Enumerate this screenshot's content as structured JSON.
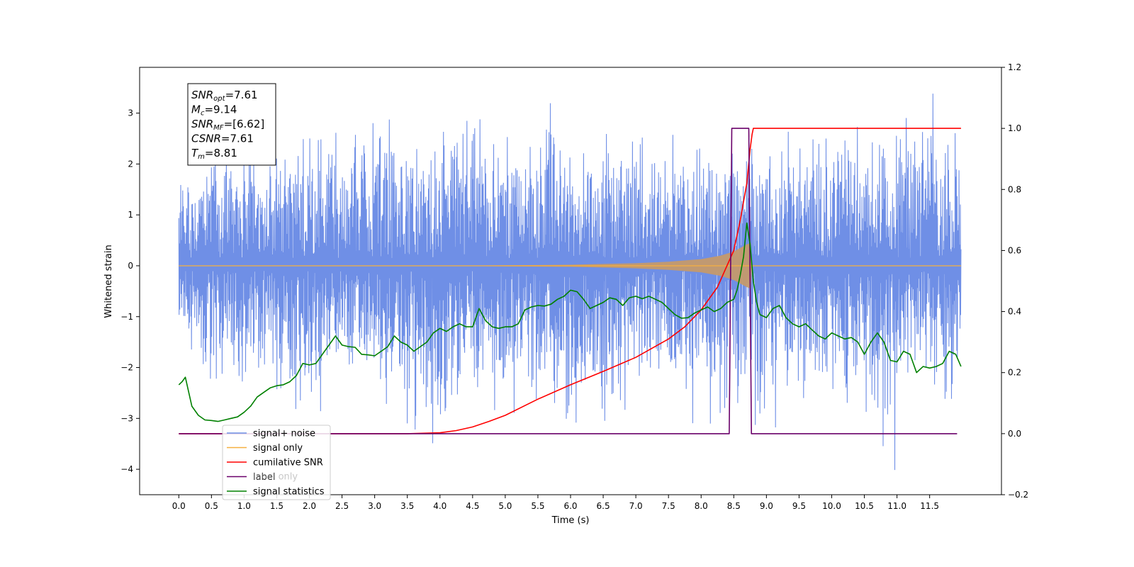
{
  "chart_data": {
    "type": "line",
    "xlabel": "Time (s)",
    "ylabel_left": "Whitened strain",
    "ylabel_right": "",
    "xlim": [
      -0.6,
      12.6
    ],
    "ylim_left": [
      -4.5,
      3.9
    ],
    "ylim_right": [
      -0.2,
      1.2
    ],
    "x_ticks": [
      0.0,
      0.5,
      1.0,
      1.5,
      2.0,
      2.5,
      3.0,
      3.5,
      4.0,
      4.5,
      5.0,
      5.5,
      6.0,
      6.5,
      7.0,
      7.5,
      8.0,
      8.5,
      9.0,
      9.5,
      10.0,
      10.5,
      11.0,
      11.5
    ],
    "x_tick_labels": [
      "0.0",
      "0.5",
      "1.0",
      "1.5",
      "2.0",
      "2.5",
      "3.0",
      "3.5",
      "4.0",
      "4.5",
      "5.0",
      "5.5",
      "6.0",
      "6.5",
      "7.0",
      "7.5",
      "8.0",
      "8.5",
      "9.0",
      "9.5",
      "10.0",
      "10.5",
      "11.0",
      "11.5"
    ],
    "y_ticks_left": [
      -4,
      -3,
      -2,
      -1,
      0,
      1,
      2,
      3
    ],
    "y_tick_labels_left": [
      "−4",
      "−3",
      "−2",
      "−1",
      "0",
      "1",
      "2",
      "3"
    ],
    "y_ticks_right": [
      -0.2,
      0.0,
      0.2,
      0.4,
      0.6,
      0.8,
      1.0,
      1.2
    ],
    "y_tick_labels_right": [
      "−0.2",
      "0.0",
      "0.2",
      "0.4",
      "0.6",
      "0.8",
      "1.0",
      "1.2"
    ],
    "grid": false,
    "legend_position": "lower-left",
    "colors": {
      "signal_noise": "#6f8fe6",
      "signal_only": "#f5b041",
      "signal_only_fill": "#c49a6c",
      "cumulative_snr": "#ff0000",
      "label": "#6a006a",
      "signal_statistics": "#008000"
    },
    "series": [
      {
        "name": "signal+ noise",
        "axis": "left",
        "x_range": [
          0.0,
          11.98
        ],
        "envelope": {
          "x": [
            0.0,
            0.5,
            1.0,
            1.5,
            2.0,
            2.5,
            3.0,
            3.5,
            4.0,
            4.5,
            5.0,
            5.5,
            6.0,
            6.5,
            7.0,
            7.5,
            8.0,
            8.5,
            9.0,
            9.5,
            10.0,
            10.5,
            11.0,
            11.5,
            11.98
          ],
          "upper": [
            1.9,
            2.3,
            2.6,
            2.2,
            3.1,
            2.5,
            3.1,
            2.6,
            2.6,
            2.9,
            2.8,
            3.5,
            2.7,
            2.6,
            2.5,
            2.6,
            2.4,
            2.6,
            2.5,
            2.7,
            3.2,
            2.6,
            2.9,
            3.5,
            2.4
          ],
          "lower": [
            -1.1,
            -2.5,
            -2.4,
            -3.0,
            -3.2,
            -2.2,
            -2.5,
            -3.1,
            -3.6,
            -2.5,
            -3.0,
            -2.6,
            -3.4,
            -3.5,
            -2.5,
            -2.5,
            -3.3,
            -2.6,
            -3.4,
            -2.6,
            -2.6,
            -2.8,
            -4.1,
            -2.6,
            -2.9
          ]
        }
      },
      {
        "name": "signal only",
        "axis": "left",
        "x": [
          0.0,
          4.0,
          5.0,
          6.0,
          7.0,
          7.5,
          8.0,
          8.3,
          8.5,
          8.7,
          8.76,
          8.78,
          11.98
        ],
        "amplitude": [
          0.0,
          0.0,
          0.01,
          0.02,
          0.05,
          0.08,
          0.13,
          0.2,
          0.28,
          0.42,
          0.45,
          0.0,
          0.0
        ]
      },
      {
        "name": "cumilative SNR",
        "axis": "right",
        "x": [
          0.0,
          3.5,
          4.0,
          4.25,
          4.5,
          4.75,
          5.0,
          5.5,
          6.0,
          6.5,
          7.0,
          7.5,
          7.75,
          8.0,
          8.25,
          8.5,
          8.6,
          8.7,
          8.75,
          8.78,
          8.8,
          11.98
        ],
        "y": [
          0.0,
          0.0,
          0.003,
          0.01,
          0.022,
          0.04,
          0.06,
          0.113,
          0.16,
          0.204,
          0.25,
          0.31,
          0.35,
          0.405,
          0.48,
          0.6,
          0.7,
          0.82,
          0.93,
          0.98,
          1.0,
          1.0
        ]
      },
      {
        "name": "label",
        "axis": "right",
        "x": [
          0.0,
          8.43,
          8.47,
          8.73,
          8.77,
          11.92
        ],
        "y": [
          0.0,
          0.0,
          1.0,
          1.0,
          0.0,
          0.0
        ]
      },
      {
        "name": "signal statistics",
        "axis": "right",
        "x": [
          0.0,
          0.05,
          0.1,
          0.2,
          0.3,
          0.4,
          0.5,
          0.6,
          0.7,
          0.8,
          0.9,
          1.0,
          1.1,
          1.2,
          1.3,
          1.4,
          1.5,
          1.6,
          1.7,
          1.8,
          1.9,
          2.0,
          2.1,
          2.2,
          2.3,
          2.4,
          2.5,
          2.6,
          2.7,
          2.8,
          2.9,
          3.0,
          3.1,
          3.2,
          3.3,
          3.4,
          3.5,
          3.6,
          3.7,
          3.8,
          3.9,
          4.0,
          4.1,
          4.2,
          4.3,
          4.4,
          4.5,
          4.6,
          4.7,
          4.8,
          4.9,
          5.0,
          5.1,
          5.2,
          5.3,
          5.4,
          5.5,
          5.6,
          5.7,
          5.8,
          5.9,
          6.0,
          6.1,
          6.2,
          6.3,
          6.4,
          6.5,
          6.6,
          6.7,
          6.8,
          6.9,
          7.0,
          7.1,
          7.2,
          7.3,
          7.4,
          7.5,
          7.6,
          7.7,
          7.8,
          7.9,
          8.0,
          8.1,
          8.2,
          8.3,
          8.4,
          8.5,
          8.55,
          8.6,
          8.65,
          8.7,
          8.75,
          8.8,
          8.85,
          8.9,
          9.0,
          9.1,
          9.2,
          9.3,
          9.4,
          9.5,
          9.6,
          9.7,
          9.8,
          9.9,
          10.0,
          10.1,
          10.2,
          10.3,
          10.4,
          10.5,
          10.6,
          10.7,
          10.8,
          10.9,
          11.0,
          11.1,
          11.2,
          11.3,
          11.4,
          11.5,
          11.6,
          11.7,
          11.8,
          11.9,
          11.98
        ],
        "y": [
          0.16,
          0.17,
          0.185,
          0.09,
          0.06,
          0.045,
          0.043,
          0.04,
          0.045,
          0.05,
          0.055,
          0.07,
          0.09,
          0.12,
          0.135,
          0.15,
          0.157,
          0.16,
          0.17,
          0.19,
          0.23,
          0.225,
          0.23,
          0.26,
          0.29,
          0.32,
          0.29,
          0.285,
          0.283,
          0.26,
          0.258,
          0.255,
          0.27,
          0.285,
          0.32,
          0.3,
          0.29,
          0.27,
          0.285,
          0.3,
          0.33,
          0.345,
          0.335,
          0.35,
          0.36,
          0.35,
          0.35,
          0.41,
          0.37,
          0.35,
          0.345,
          0.35,
          0.35,
          0.36,
          0.405,
          0.415,
          0.42,
          0.418,
          0.424,
          0.44,
          0.45,
          0.47,
          0.465,
          0.44,
          0.41,
          0.42,
          0.43,
          0.445,
          0.44,
          0.42,
          0.445,
          0.45,
          0.442,
          0.45,
          0.44,
          0.43,
          0.41,
          0.39,
          0.378,
          0.38,
          0.395,
          0.405,
          0.415,
          0.4,
          0.41,
          0.43,
          0.44,
          0.47,
          0.52,
          0.58,
          0.69,
          0.62,
          0.5,
          0.43,
          0.39,
          0.38,
          0.41,
          0.42,
          0.38,
          0.36,
          0.35,
          0.36,
          0.34,
          0.32,
          0.31,
          0.33,
          0.32,
          0.31,
          0.315,
          0.3,
          0.26,
          0.3,
          0.33,
          0.3,
          0.24,
          0.235,
          0.27,
          0.26,
          0.2,
          0.22,
          0.215,
          0.22,
          0.23,
          0.27,
          0.26,
          0.22
        ]
      }
    ],
    "annotation_box": {
      "lines": [
        {
          "base": "SNR",
          "sub": "opt",
          "rest": "=7.61"
        },
        {
          "base": "M",
          "sub": "c",
          "rest": "=9.14"
        },
        {
          "base": "SNR",
          "sub": "MF",
          "rest": "=[6.62]"
        },
        {
          "base": "CSNR",
          "sub": "",
          "rest": "=7.61"
        },
        {
          "base": "T",
          "sub": "m",
          "rest": "=8.81"
        }
      ]
    },
    "legend": [
      {
        "label": "signal+ noise",
        "color": "#6f8fe6"
      },
      {
        "label": "signal only",
        "color": "#f5b041"
      },
      {
        "label": "cumilative SNR",
        "color": "#ff0000"
      },
      {
        "label": "label",
        "color": "#6a006a"
      },
      {
        "label": "signal statistics",
        "color": "#008000"
      }
    ],
    "legend_ghost_text": [
      "label only"
    ]
  }
}
